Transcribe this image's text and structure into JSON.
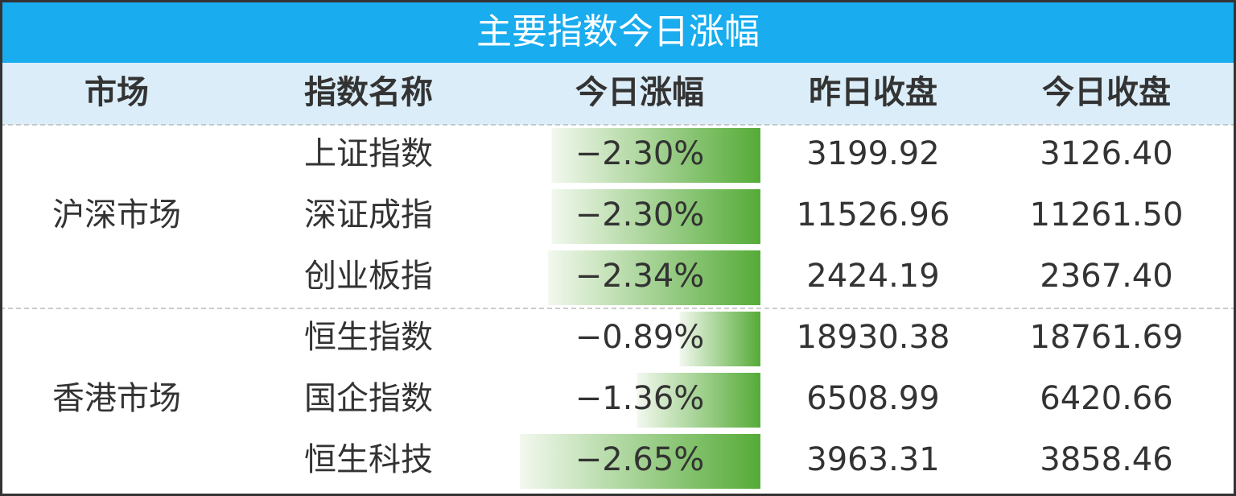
{
  "title": "主要指数今日涨幅",
  "header": [
    "市场",
    "指数名称",
    "今日涨幅",
    "昨日收盘",
    "今日收盘"
  ],
  "groups": [
    {
      "market": "沪深市场",
      "rows": [
        {
          "name": "上证指数",
          "change": {
            "value": -2.3,
            "label": "−2.30%"
          },
          "prev": "3199.92",
          "close": "3126.40"
        },
        {
          "name": "深证成指",
          "change": {
            "value": -2.3,
            "label": "−2.30%"
          },
          "prev": "11526.96",
          "close": "11261.50"
        },
        {
          "name": "创业板指",
          "change": {
            "value": -2.34,
            "label": "−2.34%"
          },
          "prev": "2424.19",
          "close": "2367.40"
        }
      ]
    },
    {
      "market": "香港市场",
      "rows": [
        {
          "name": "恒生指数",
          "change": {
            "value": -0.89,
            "label": "−0.89%"
          },
          "prev": "18930.38",
          "close": "18761.69"
        },
        {
          "name": "国企指数",
          "change": {
            "value": -1.36,
            "label": "−1.36%"
          },
          "prev": "6508.99",
          "close": "6420.66"
        },
        {
          "name": "恒生科技",
          "change": {
            "value": -2.65,
            "label": "−2.65%"
          },
          "prev": "3963.31",
          "close": "3858.46"
        }
      ]
    }
  ]
}
